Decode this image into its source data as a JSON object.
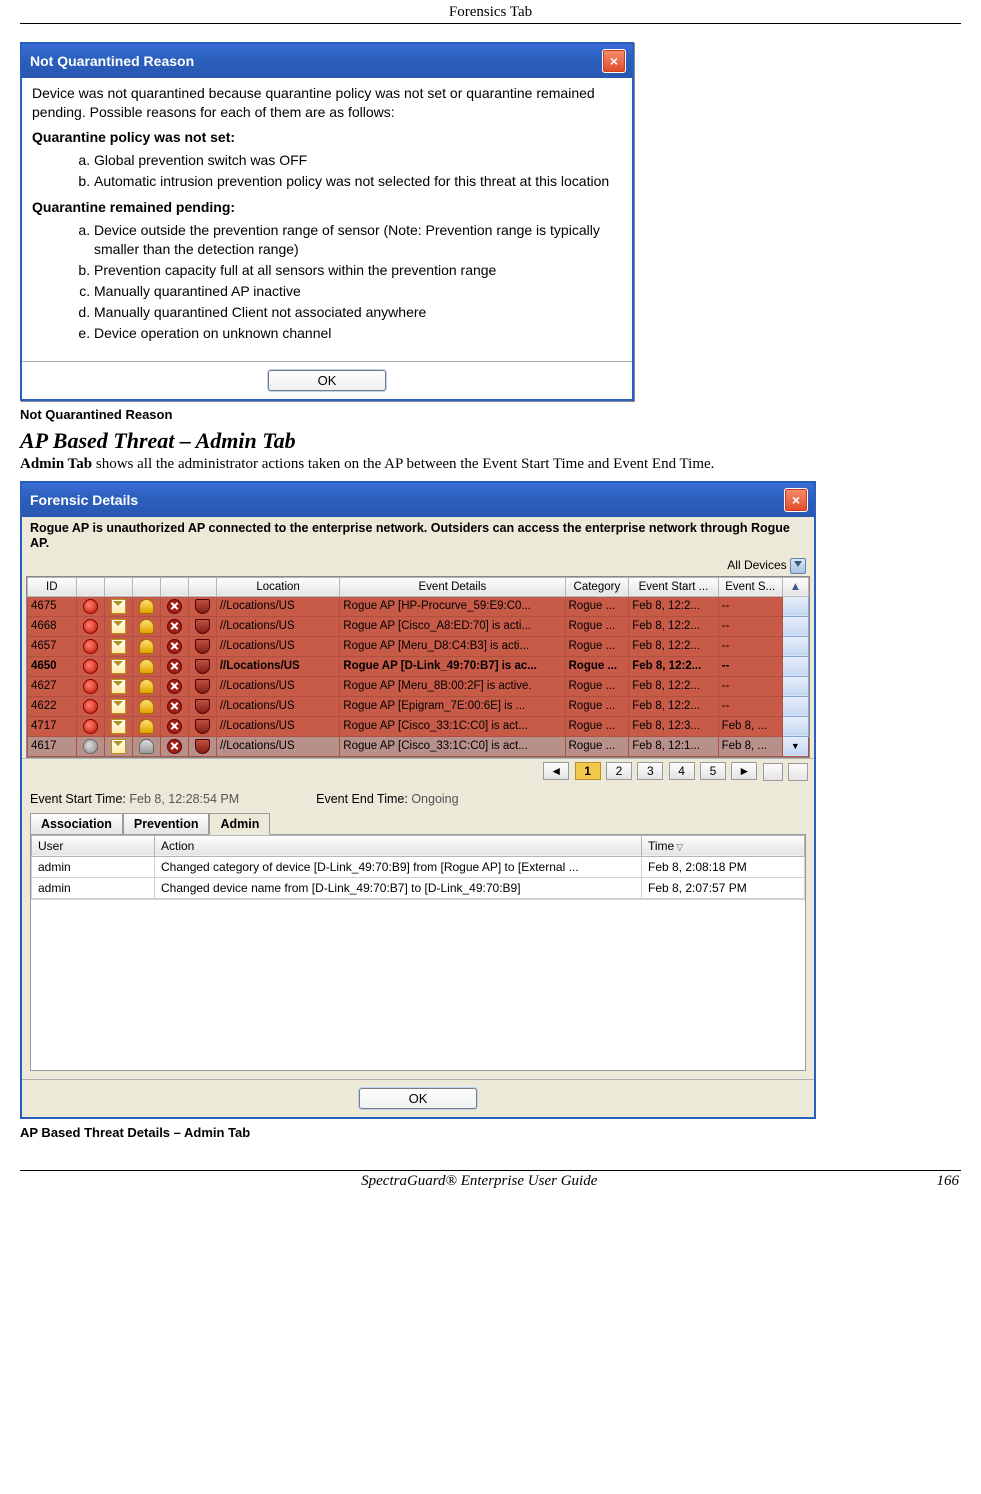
{
  "page_header": "Forensics Tab",
  "dialog1": {
    "title": "Not Quarantined Reason",
    "intro": "Device was not quarantined because quarantine policy was not set or quarantine remained pending. Possible reasons for each of them are as follows:",
    "sec1_head": "Quarantine policy was not set:",
    "sec1_a": "Global prevention switch was OFF",
    "sec1_b": "Automatic intrusion prevention policy was not selected for this threat at this location",
    "sec2_head": "Quarantine remained pending:",
    "sec2_a": "Device outside the prevention range of sensor (Note: Prevention range is typically smaller than the detection range)",
    "sec2_b": "Prevention capacity full at all sensors within the prevention range",
    "sec2_c": "Manually quarantined AP inactive",
    "sec2_d": "Manually quarantined Client not associated anywhere",
    "sec2_e": "Device operation on unknown channel",
    "ok": "OK"
  },
  "caption1": "Not Quarantined Reason",
  "heading2": "AP Based Threat – Admin Tab",
  "para2_a": "Admin Tab",
  "para2_b": " shows all the administrator actions taken on the AP between the Event Start Time and Event End Time.",
  "dialog2": {
    "title": "Forensic Details",
    "desc": "Rogue AP is unauthorized AP connected to the enterprise network. Outsiders can access the enterprise network through Rogue AP.",
    "filter_label": "All Devices",
    "columns": {
      "id": "ID",
      "c1": "",
      "c2": "",
      "c3": "",
      "c4": "",
      "c5": "",
      "location": "Location",
      "details": "Event Details",
      "category": "Category",
      "start": "Event Start ...",
      "end": "Event S..."
    },
    "rows": [
      {
        "id": "4675",
        "loc": "//Locations/US",
        "det": "Rogue AP [HP-Procurve_59:E9:C0...",
        "cat": "Rogue ...",
        "start": "Feb 8, 12:2...",
        "end": "--",
        "style": "red",
        "dot": "red",
        "bell": "y"
      },
      {
        "id": "4668",
        "loc": "//Locations/US",
        "det": "Rogue AP [Cisco_A8:ED:70] is acti...",
        "cat": "Rogue ...",
        "start": "Feb 8, 12:2...",
        "end": "--",
        "style": "red",
        "dot": "red",
        "bell": "y"
      },
      {
        "id": "4657",
        "loc": "//Locations/US",
        "det": "Rogue AP [Meru_D8:C4:B3] is acti...",
        "cat": "Rogue ...",
        "start": "Feb 8, 12:2...",
        "end": "--",
        "style": "red",
        "dot": "red",
        "bell": "y"
      },
      {
        "id": "4650",
        "loc": "//Locations/US",
        "det": "Rogue AP [D-Link_49:70:B7] is ac...",
        "cat": "Rogue ...",
        "start": "Feb 8, 12:2...",
        "end": "--",
        "style": "redbold",
        "dot": "red",
        "bell": "y"
      },
      {
        "id": "4627",
        "loc": "//Locations/US",
        "det": "Rogue AP [Meru_8B:00:2F] is active.",
        "cat": "Rogue ...",
        "start": "Feb 8, 12:2...",
        "end": "--",
        "style": "red",
        "dot": "red",
        "bell": "y"
      },
      {
        "id": "4622",
        "loc": "//Locations/US",
        "det": "Rogue AP [Epigram_7E:00:6E] is ...",
        "cat": "Rogue ...",
        "start": "Feb 8, 12:2...",
        "end": "--",
        "style": "red",
        "dot": "red",
        "bell": "y"
      },
      {
        "id": "4717",
        "loc": "//Locations/US",
        "det": "Rogue AP [Cisco_33:1C:C0] is act...",
        "cat": "Rogue ...",
        "start": "Feb 8, 12:3...",
        "end": "Feb 8, ...",
        "style": "red",
        "dot": "red",
        "bell": "y"
      },
      {
        "id": "4617",
        "loc": "//Locations/US",
        "det": "Rogue AP [Cisco_33:1C:C0] is act...",
        "cat": "Rogue ...",
        "start": "Feb 8, 12:1...",
        "end": "Feb 8, ...",
        "style": "dull",
        "dot": "gray",
        "bell": "g"
      }
    ],
    "pager": {
      "back": "◄",
      "p1": "1",
      "p2": "2",
      "p3": "3",
      "p4": "4",
      "p5": "5",
      "fwd": "►"
    },
    "mid": {
      "est_lbl": "Event Start Time:",
      "est_val": "  Feb 8, 12:28:54 PM",
      "eet_lbl": "Event End Time:",
      "eet_val": "  Ongoing"
    },
    "tabs": {
      "assoc": "Association",
      "prev": "Prevention",
      "admin": "Admin"
    },
    "lower_cols": {
      "user": "User",
      "action": "Action",
      "time": "Time"
    },
    "lower_rows": [
      {
        "user": "admin",
        "action": "Changed category of device [D-Link_49:70:B9] from [Rogue AP] to [External ...",
        "time": "Feb 8, 2:08:18 PM"
      },
      {
        "user": "admin",
        "action": "Changed device name from [D-Link_49:70:B7] to [D-Link_49:70:B9]",
        "time": "Feb 8, 2:07:57 PM"
      }
    ],
    "ok": "OK"
  },
  "caption2": "AP Based Threat Details – Admin Tab",
  "footer": {
    "title": "SpectraGuard®  Enterprise User Guide",
    "page": "166"
  },
  "colors": {
    "titlebar_start": "#3a6ed5",
    "titlebar_end": "#2857b0",
    "close_start": "#f58f6e",
    "close_end": "#e04a2a",
    "row_red": "#c85a48",
    "row_dull": "#b79089",
    "panel": "#ece9d8",
    "pager_active": "#f2c84a"
  }
}
